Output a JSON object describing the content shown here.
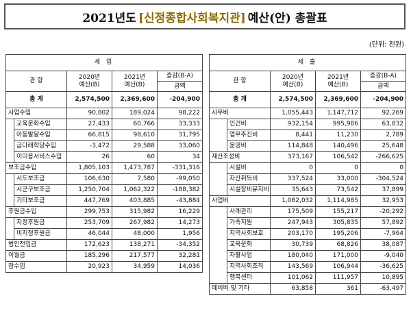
{
  "title": {
    "prefix": "2021년도",
    "org": "[신정종합사회복지관]",
    "suffix": "예산(안) 총괄표"
  },
  "unit": "(단위: 천원)",
  "income": {
    "section": "세   입",
    "col_category": "관   항",
    "col_2020": "2020년\n예산(B)",
    "col_2021": "2021년\n예산(B)",
    "col_diff": "증감(B-A)",
    "col_diff_sub": "금액",
    "total": {
      "label": "총   계",
      "v2020": "2,574,500",
      "v2021": "2,369,600",
      "diff": "-204,900"
    },
    "rows": [
      {
        "level": 0,
        "label": "사업수입",
        "v2020": "90,802",
        "v2021": "189,024",
        "diff": "98,222"
      },
      {
        "level": 1,
        "label": "교육문화수입",
        "v2020": "27,433",
        "v2021": "60,766",
        "diff": "33,333"
      },
      {
        "level": 1,
        "label": "아동발달수입",
        "v2020": "66,815",
        "v2021": "98,610",
        "diff": "31,795"
      },
      {
        "level": 1,
        "label": "금다래학당수입",
        "v2020": "-3,472",
        "v2021": "29,588",
        "diff": "33,060"
      },
      {
        "level": 1,
        "label": "이미용서비스수입",
        "v2020": "26",
        "v2021": "60",
        "diff": "34"
      },
      {
        "level": 0,
        "label": "보조금수입",
        "v2020": "1,805,103",
        "v2021": "1,473,787",
        "diff": "-331,316"
      },
      {
        "level": 1,
        "label": "시도보조금",
        "v2020": "106,630",
        "v2021": "7,580",
        "diff": "-99,050"
      },
      {
        "level": 1,
        "label": "시군구보조금",
        "v2020": "1,250,704",
        "v2021": "1,062,322",
        "diff": "-188,382"
      },
      {
        "level": 1,
        "label": "기타보조금",
        "v2020": "447,769",
        "v2021": "403,885",
        "diff": "-43,884"
      },
      {
        "level": 0,
        "label": "후원금수입",
        "v2020": "299,753",
        "v2021": "315,982",
        "diff": "16,229"
      },
      {
        "level": 1,
        "label": "지정후원금",
        "v2020": "253,709",
        "v2021": "267,982",
        "diff": "14,273"
      },
      {
        "level": 1,
        "label": "비지정후원금",
        "v2020": "46,044",
        "v2021": "48,000",
        "diff": "1,956"
      },
      {
        "level": 0,
        "label": "법인전입금",
        "v2020": "172,623",
        "v2021": "138,271",
        "diff": "-34,352"
      },
      {
        "level": 0,
        "label": "이월금",
        "v2020": "185,296",
        "v2021": "217,577",
        "diff": "32,281"
      },
      {
        "level": 0,
        "label": "잡수입",
        "v2020": "20,923",
        "v2021": "34,959",
        "diff": "14,036"
      }
    ]
  },
  "expense": {
    "section": "세   출",
    "col_category": "관   항",
    "col_2020": "2020년\n예산(B)",
    "col_2021": "2021년\n예산(B)",
    "col_diff": "증감(B-A)",
    "col_diff_sub": "금액",
    "total": {
      "label": "총   계",
      "v2020": "2,574,500",
      "v2021": "2,369,600",
      "diff": "-204,900"
    },
    "rows": [
      {
        "level": 0,
        "label": "사무비",
        "v2020": "1,055,443",
        "v2021": "1,147,712",
        "diff": "92,269"
      },
      {
        "level": 1,
        "label": "인건비",
        "v2020": "932,154",
        "v2021": "995,986",
        "diff": "63,832"
      },
      {
        "level": 1,
        "label": "업무추진비",
        "v2020": "8,441",
        "v2021": "11,230",
        "diff": "2,789"
      },
      {
        "level": 1,
        "label": "운영비",
        "v2020": "114,848",
        "v2021": "140,496",
        "diff": "25,648"
      },
      {
        "level": 0,
        "label": "재산조성비",
        "v2020": "373,167",
        "v2021": "106,542",
        "diff": "-266,625"
      },
      {
        "level": 1,
        "label": "시설비",
        "v2020": "0",
        "v2021": "0",
        "diff": "0"
      },
      {
        "level": 1,
        "label": "자산취득비",
        "v2020": "337,524",
        "v2021": "33,000",
        "diff": "-304,524"
      },
      {
        "level": 1,
        "label": "시설장비유지비",
        "v2020": "35,643",
        "v2021": "73,542",
        "diff": "37,899"
      },
      {
        "level": 0,
        "label": "사업비",
        "v2020": "1,082,032",
        "v2021": "1,114,985",
        "diff": "32,953"
      },
      {
        "level": 1,
        "label": "사례관리",
        "v2020": "175,509",
        "v2021": "155,217",
        "diff": "-20,292"
      },
      {
        "level": 1,
        "label": "가족지원",
        "v2020": "247,943",
        "v2021": "305,835",
        "diff": "57,892"
      },
      {
        "level": 1,
        "label": "지역사회보호",
        "v2020": "203,170",
        "v2021": "195,206",
        "diff": "-7,964"
      },
      {
        "level": 1,
        "label": "교육문화",
        "v2020": "30,739",
        "v2021": "68,826",
        "diff": "38,087"
      },
      {
        "level": 1,
        "label": "자활사업",
        "v2020": "180,040",
        "v2021": "171,000",
        "diff": "-9,040"
      },
      {
        "level": 1,
        "label": "지역사회조직",
        "v2020": "143,569",
        "v2021": "106,944",
        "diff": "-36,625"
      },
      {
        "level": 1,
        "label": "행복센터",
        "v2020": "101,062",
        "v2021": "111,957",
        "diff": "10,895"
      },
      {
        "level": 0,
        "label": "예비비 및 기타",
        "v2020": "63,858",
        "v2021": "361",
        "diff": "-63,497"
      }
    ]
  }
}
